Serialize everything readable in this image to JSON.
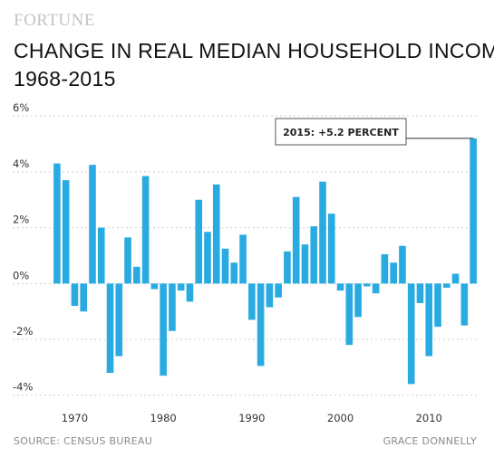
{
  "brand": "FORTUNE",
  "source": "SOURCE: CENSUS BUREAU",
  "credit": "GRACE DONNELLY",
  "chart_data": {
    "type": "bar",
    "title_lines": [
      "CHANGE IN REAL MEDIAN HOUSEHOLD INCOME,",
      "1968-2015"
    ],
    "xlabel": "",
    "ylabel": "",
    "x": [
      1968,
      1969,
      1970,
      1971,
      1972,
      1973,
      1974,
      1975,
      1976,
      1977,
      1978,
      1979,
      1980,
      1981,
      1982,
      1983,
      1984,
      1985,
      1986,
      1987,
      1988,
      1989,
      1990,
      1991,
      1992,
      1993,
      1994,
      1995,
      1996,
      1997,
      1998,
      1999,
      2000,
      2001,
      2002,
      2003,
      2004,
      2005,
      2006,
      2007,
      2008,
      2009,
      2010,
      2011,
      2012,
      2013,
      2014,
      2015
    ],
    "values": [
      4.3,
      3.7,
      -0.8,
      -1.0,
      4.25,
      2.0,
      -3.2,
      -2.6,
      1.65,
      0.6,
      3.85,
      -0.2,
      -3.3,
      -1.7,
      -0.25,
      -0.65,
      3.0,
      1.85,
      3.55,
      1.25,
      0.75,
      1.75,
      -1.3,
      -2.95,
      -0.85,
      -0.5,
      1.15,
      3.1,
      1.4,
      2.05,
      3.65,
      2.5,
      -0.25,
      -2.2,
      -1.2,
      -0.1,
      -0.35,
      1.05,
      0.75,
      1.35,
      -3.6,
      -0.7,
      -2.6,
      -1.55,
      -0.15,
      0.35,
      -1.5,
      5.2
    ],
    "xticks": [
      1970,
      1980,
      1990,
      2000,
      2010
    ],
    "xtick_labels": [
      "1970",
      "1980",
      "1990",
      "2000",
      "2010"
    ],
    "yticks": [
      -4,
      -2,
      0,
      2,
      4,
      6
    ],
    "ytick_labels": [
      "-4%",
      "-2%",
      "0%",
      "2%",
      "4%",
      "6%"
    ],
    "ylim": [
      -4.3,
      6.2
    ],
    "grid": true,
    "bar_color": "#29abe2",
    "annotation": {
      "x": 2015,
      "value": 5.2,
      "label": "2015: +5.2 PERCENT"
    }
  }
}
